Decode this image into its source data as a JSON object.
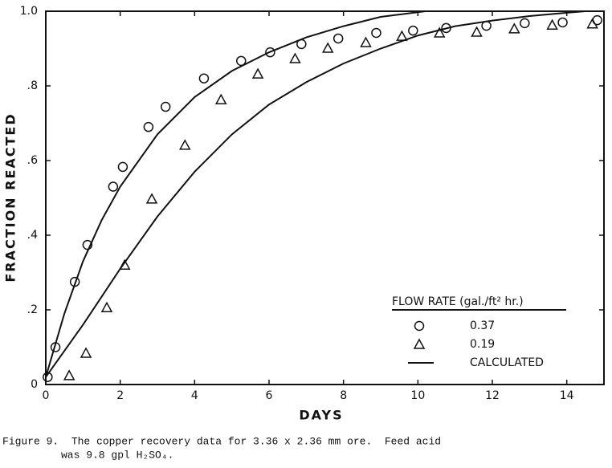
{
  "chart_data": {
    "type": "scatter-fit",
    "xlabel": "DAYS",
    "ylabel": "FRACTION REACTED",
    "xlim": [
      0,
      15
    ],
    "ylim": [
      0,
      1.0
    ],
    "xticks": [
      0,
      2,
      4,
      6,
      8,
      10,
      12,
      14
    ],
    "yticks": [
      0,
      {
        "value": 0.2,
        "label": ".2"
      },
      {
        "value": 0.4,
        "label": ".4"
      },
      {
        "value": 0.6,
        "label": ".6"
      },
      {
        "value": 0.8,
        "label": ".8"
      },
      {
        "value": 1.0,
        "label": "1.0"
      }
    ],
    "legend_title": "FLOW RATE (gal./ft² hr.)",
    "fit_name": "CALCULATED",
    "color": "#111111",
    "series": [
      {
        "name": "0.37",
        "marker": "circle",
        "x": [
          0.05,
          0.26,
          0.78,
          1.12,
          1.81,
          2.07,
          2.76,
          3.22,
          4.25,
          5.25,
          6.03,
          6.87,
          7.86,
          8.88,
          9.87,
          10.76,
          11.84,
          12.87,
          13.89,
          14.82
        ],
        "values": [
          0.02,
          0.1,
          0.275,
          0.374,
          0.53,
          0.583,
          0.69,
          0.744,
          0.82,
          0.867,
          0.89,
          0.912,
          0.927,
          0.942,
          0.948,
          0.955,
          0.961,
          0.968,
          0.97,
          0.976
        ],
        "fit_x": [
          0,
          0.5,
          1,
          1.5,
          2,
          3,
          4,
          5,
          6,
          7,
          8,
          9,
          10.2
        ],
        "fit_values": [
          0.02,
          0.19,
          0.33,
          0.44,
          0.53,
          0.67,
          0.77,
          0.84,
          0.89,
          0.93,
          0.96,
          0.985,
          1.0
        ]
      },
      {
        "name": "0.19",
        "marker": "triangle",
        "x": [
          0.63,
          1.08,
          1.64,
          2.12,
          2.85,
          3.74,
          4.71,
          5.7,
          6.7,
          7.58,
          8.6,
          9.57,
          10.58,
          11.58,
          12.59,
          13.61,
          14.69
        ],
        "values": [
          0.024,
          0.084,
          0.206,
          0.32,
          0.497,
          0.641,
          0.763,
          0.832,
          0.873,
          0.901,
          0.916,
          0.933,
          0.942,
          0.944,
          0.953,
          0.963,
          0.966
        ],
        "fit_x": [
          0,
          1,
          2,
          3,
          4,
          5,
          6,
          7,
          8,
          9,
          10,
          11,
          12,
          13,
          14,
          14.5
        ],
        "fit_values": [
          0.02,
          0.16,
          0.31,
          0.45,
          0.57,
          0.67,
          0.75,
          0.81,
          0.86,
          0.9,
          0.935,
          0.96,
          0.975,
          0.987,
          0.996,
          1.0
        ]
      }
    ]
  },
  "caption": {
    "line1": "Figure 9.  The copper recovery data for 3.36 x 2.36 mm ore.  Feed acid",
    "line2": "was 9.8 gpl H₂SO₄."
  }
}
